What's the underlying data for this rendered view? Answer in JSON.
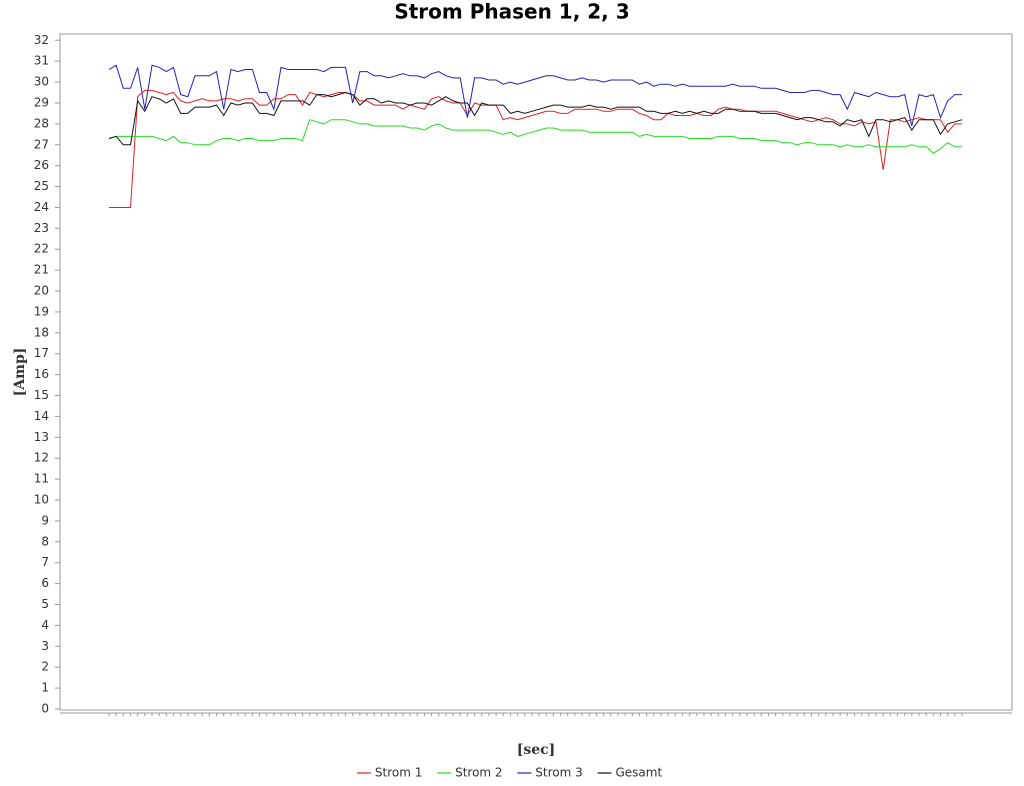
{
  "chart_data": {
    "type": "line",
    "title": "Strom Phasen 1, 2, 3",
    "xlabel": "[sec]",
    "ylabel": "[Amp]",
    "categories": [
      null,
      null,
      null,
      null,
      null,
      null,
      null,
      null,
      null,
      null,
      null,
      null,
      null,
      null,
      null,
      null,
      null,
      null,
      null,
      null,
      null,
      null,
      null,
      null,
      null,
      null,
      null,
      null,
      null,
      null,
      null,
      null,
      null,
      null,
      null,
      null,
      null,
      null,
      null,
      null,
      null,
      null,
      null,
      null,
      null,
      null,
      null,
      null,
      null,
      null,
      null,
      null,
      null,
      null,
      null,
      null,
      null,
      null,
      null,
      null,
      null,
      null,
      null,
      null,
      null,
      null,
      null,
      null,
      null,
      null,
      null,
      null,
      null,
      null,
      null,
      null,
      null,
      null,
      null,
      null,
      null,
      null,
      null,
      null,
      null,
      null,
      null,
      null,
      null,
      null,
      null,
      null,
      null,
      null,
      null,
      null,
      null,
      null,
      null,
      null,
      null,
      null,
      null,
      null,
      null,
      null,
      null,
      null,
      null,
      null,
      null,
      null,
      null,
      null,
      null,
      null,
      null,
      null,
      null,
      null
    ],
    "ylim": [
      0,
      32.3
    ],
    "yticks": [
      0,
      1,
      2,
      3,
      4,
      5,
      6,
      7,
      8,
      9,
      10,
      11,
      12,
      13,
      14,
      15,
      16,
      17,
      18,
      19,
      20,
      21,
      22,
      23,
      24,
      25,
      26,
      27,
      28,
      29,
      30,
      31,
      32
    ],
    "grid": false,
    "legend": "bottom",
    "series": [
      {
        "name": "Strom 1",
        "color": "#dd2222",
        "values": [
          24.0,
          24.0,
          24.0,
          24.0,
          29.3,
          29.6,
          29.6,
          29.5,
          29.4,
          29.5,
          29.1,
          29.0,
          29.1,
          29.2,
          29.1,
          29.1,
          29.2,
          29.2,
          29.1,
          29.2,
          29.2,
          28.9,
          28.9,
          29.2,
          29.2,
          29.4,
          29.4,
          28.9,
          29.5,
          29.4,
          29.3,
          29.4,
          29.5,
          29.5,
          29.4,
          29.1,
          29.1,
          28.9,
          28.9,
          28.9,
          28.9,
          28.7,
          28.9,
          28.8,
          28.7,
          29.2,
          29.3,
          29.1,
          29.0,
          29.0,
          28.4,
          29.0,
          28.9,
          28.9,
          28.9,
          28.2,
          28.3,
          28.2,
          28.3,
          28.4,
          28.5,
          28.6,
          28.6,
          28.5,
          28.5,
          28.7,
          28.7,
          28.7,
          28.7,
          28.6,
          28.6,
          28.7,
          28.7,
          28.7,
          28.5,
          28.4,
          28.2,
          28.2,
          28.5,
          28.4,
          28.4,
          28.4,
          28.5,
          28.4,
          28.4,
          28.7,
          28.8,
          28.7,
          28.7,
          28.6,
          28.6,
          28.6,
          28.6,
          28.6,
          28.5,
          28.4,
          28.3,
          28.2,
          28.1,
          28.2,
          28.3,
          28.2,
          28.0,
          28.0,
          27.9,
          28.1,
          28.0,
          28.1,
          25.8,
          28.2,
          28.2,
          28.1,
          28.2,
          28.3,
          28.2,
          28.2,
          28.2,
          27.6,
          28.0,
          28.0
        ]
      },
      {
        "name": "Strom 2",
        "color": "#22dd22",
        "values": [
          27.3,
          27.4,
          27.4,
          27.4,
          27.4,
          27.4,
          27.4,
          27.3,
          27.2,
          27.4,
          27.1,
          27.1,
          27.0,
          27.0,
          27.0,
          27.2,
          27.3,
          27.3,
          27.2,
          27.3,
          27.3,
          27.2,
          27.2,
          27.2,
          27.3,
          27.3,
          27.3,
          27.2,
          28.2,
          28.1,
          28.0,
          28.2,
          28.2,
          28.2,
          28.1,
          28.0,
          28.0,
          27.9,
          27.9,
          27.9,
          27.9,
          27.9,
          27.8,
          27.8,
          27.7,
          27.9,
          28.0,
          27.8,
          27.7,
          27.7,
          27.7,
          27.7,
          27.7,
          27.7,
          27.6,
          27.5,
          27.6,
          27.4,
          27.5,
          27.6,
          27.7,
          27.8,
          27.8,
          27.7,
          27.7,
          27.7,
          27.7,
          27.6,
          27.6,
          27.6,
          27.6,
          27.6,
          27.6,
          27.6,
          27.4,
          27.5,
          27.4,
          27.4,
          27.4,
          27.4,
          27.4,
          27.3,
          27.3,
          27.3,
          27.3,
          27.4,
          27.4,
          27.4,
          27.3,
          27.3,
          27.3,
          27.2,
          27.2,
          27.2,
          27.1,
          27.1,
          27.0,
          27.1,
          27.1,
          27.0,
          27.0,
          27.0,
          26.9,
          27.0,
          26.9,
          26.9,
          27.0,
          26.9,
          26.9,
          26.9,
          26.9,
          26.9,
          27.0,
          26.9,
          26.9,
          26.6,
          26.8,
          27.1,
          26.9,
          26.9
        ]
      },
      {
        "name": "Strom 3",
        "color": "#2222bb",
        "values": [
          30.6,
          30.8,
          29.7,
          29.7,
          30.7,
          28.7,
          30.8,
          30.7,
          30.5,
          30.7,
          29.4,
          29.3,
          30.3,
          30.3,
          30.3,
          30.5,
          28.7,
          30.6,
          30.5,
          30.6,
          30.6,
          29.5,
          29.5,
          28.7,
          30.7,
          30.6,
          30.6,
          30.6,
          30.6,
          30.6,
          30.5,
          30.7,
          30.7,
          30.7,
          29.0,
          30.5,
          30.5,
          30.3,
          30.3,
          30.2,
          30.3,
          30.4,
          30.3,
          30.3,
          30.2,
          30.4,
          30.5,
          30.3,
          30.2,
          30.2,
          28.3,
          30.2,
          30.2,
          30.1,
          30.1,
          29.9,
          30.0,
          29.9,
          30.0,
          30.1,
          30.2,
          30.3,
          30.3,
          30.2,
          30.1,
          30.1,
          30.2,
          30.1,
          30.1,
          30.0,
          30.1,
          30.1,
          30.1,
          30.1,
          29.9,
          30.0,
          29.8,
          29.9,
          29.9,
          29.8,
          29.9,
          29.8,
          29.8,
          29.8,
          29.8,
          29.8,
          29.8,
          29.9,
          29.8,
          29.8,
          29.8,
          29.7,
          29.7,
          29.7,
          29.6,
          29.5,
          29.5,
          29.5,
          29.6,
          29.6,
          29.5,
          29.4,
          29.4,
          28.7,
          29.5,
          29.4,
          29.3,
          29.5,
          29.4,
          29.3,
          29.3,
          29.4,
          27.9,
          29.4,
          29.3,
          29.4,
          28.3,
          29.1,
          29.4,
          29.4
        ]
      },
      {
        "name": "Gesamt",
        "color": "#111111",
        "values": [
          27.3,
          27.4,
          27.0,
          27.0,
          29.1,
          28.6,
          29.3,
          29.2,
          29.0,
          29.2,
          28.5,
          28.5,
          28.8,
          28.8,
          28.8,
          28.9,
          28.4,
          29.0,
          28.9,
          29.0,
          29.0,
          28.5,
          28.5,
          28.4,
          29.1,
          29.1,
          29.1,
          29.1,
          28.9,
          29.4,
          29.4,
          29.3,
          29.4,
          29.5,
          29.4,
          28.9,
          29.2,
          29.2,
          29.0,
          29.1,
          29.0,
          29.0,
          28.9,
          29.0,
          29.0,
          28.9,
          29.1,
          29.3,
          29.1,
          29.0,
          29.0,
          28.4,
          29.0,
          28.9,
          28.9,
          28.9,
          28.5,
          28.6,
          28.5,
          28.6,
          28.7,
          28.8,
          28.9,
          28.9,
          28.8,
          28.8,
          28.8,
          28.9,
          28.8,
          28.8,
          28.7,
          28.8,
          28.8,
          28.8,
          28.8,
          28.6,
          28.6,
          28.5,
          28.5,
          28.6,
          28.5,
          28.6,
          28.5,
          28.6,
          28.5,
          28.5,
          28.7,
          28.7,
          28.6,
          28.6,
          28.6,
          28.5,
          28.5,
          28.5,
          28.4,
          28.3,
          28.2,
          28.3,
          28.3,
          28.2,
          28.1,
          28.1,
          27.9,
          28.2,
          28.1,
          28.2,
          27.4,
          28.2,
          28.2,
          28.1,
          28.2,
          28.3,
          27.7,
          28.2,
          28.2,
          28.2,
          27.5,
          28.0,
          28.1,
          28.2
        ]
      }
    ]
  }
}
